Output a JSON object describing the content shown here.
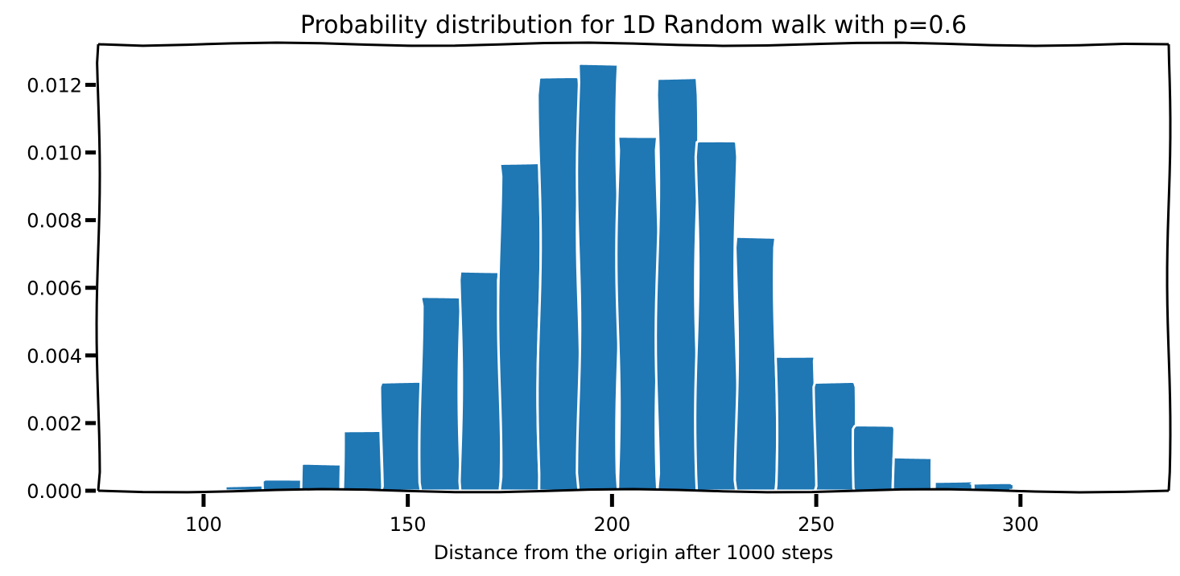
{
  "chart_data": {
    "type": "bar",
    "style": "xkcd histogram",
    "title": "Probability distribution for 1D Random walk with p=0.6",
    "xlabel": "Distance from the origin after 1000 steps",
    "ylabel": "",
    "xlim": [
      74.2,
      336.3
    ],
    "ylim": [
      0,
      0.0132
    ],
    "xticks": [
      100,
      150,
      200,
      250,
      300
    ],
    "xtick_labels": [
      "100",
      "150",
      "200",
      "250",
      "300"
    ],
    "yticks": [
      0,
      0.002,
      0.004,
      0.006,
      0.008,
      0.01,
      0.012
    ],
    "ytick_labels": [
      "0.000",
      "0.002",
      "0.004",
      "0.006",
      "0.008",
      "0.010",
      "0.012"
    ],
    "bin_start": 95.3,
    "bin_width": 9.65,
    "values": [
      3e-05,
      0.00015,
      0.0003,
      0.0008,
      0.0018,
      0.0032,
      0.0057,
      0.0065,
      0.0097,
      0.0122,
      0.0126,
      0.0105,
      0.0122,
      0.0103,
      0.0075,
      0.004,
      0.0032,
      0.0019,
      0.001,
      0.0003,
      0.0002,
      2e-05
    ],
    "color": "#1f77b4",
    "grid": false
  }
}
